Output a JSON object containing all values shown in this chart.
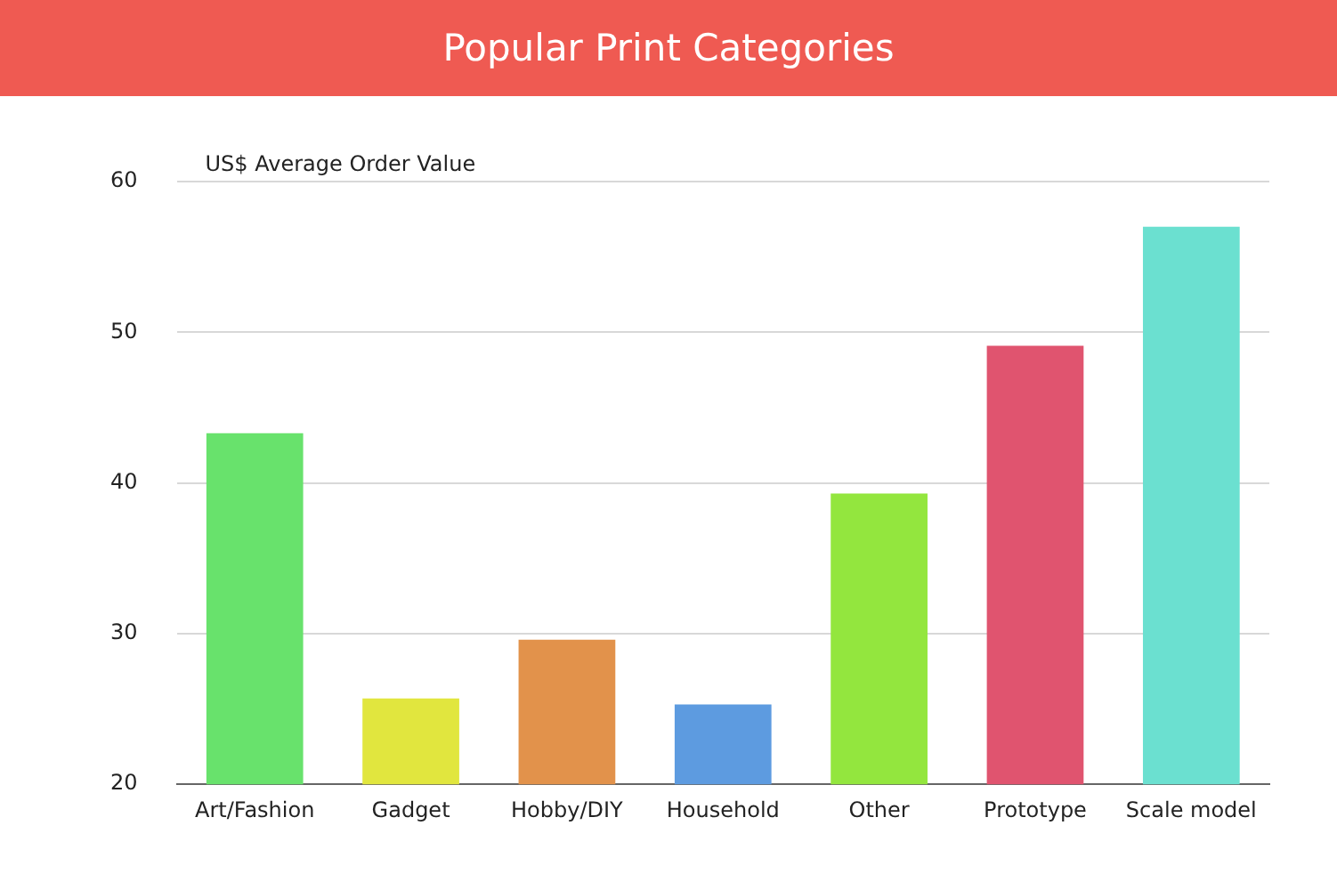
{
  "chart_data": {
    "type": "bar",
    "title": "Popular Print Categories",
    "ylabel": "US$ Average Order Value",
    "categories": [
      "Art/Fashion",
      "Gadget",
      "Hobby/DIY",
      "Household",
      "Other",
      "Prototype",
      "Scale model"
    ],
    "values": [
      43.3,
      25.7,
      29.6,
      25.3,
      39.3,
      49.1,
      57.0
    ],
    "colors": [
      "#68e26c",
      "#e1e63e",
      "#e2924b",
      "#5d9be0",
      "#93e63e",
      "#e0546f",
      "#6be0d0"
    ],
    "ylim": [
      20,
      60
    ],
    "yticks": [
      20,
      30,
      40,
      50,
      60
    ],
    "grid": "y",
    "legend": false
  }
}
